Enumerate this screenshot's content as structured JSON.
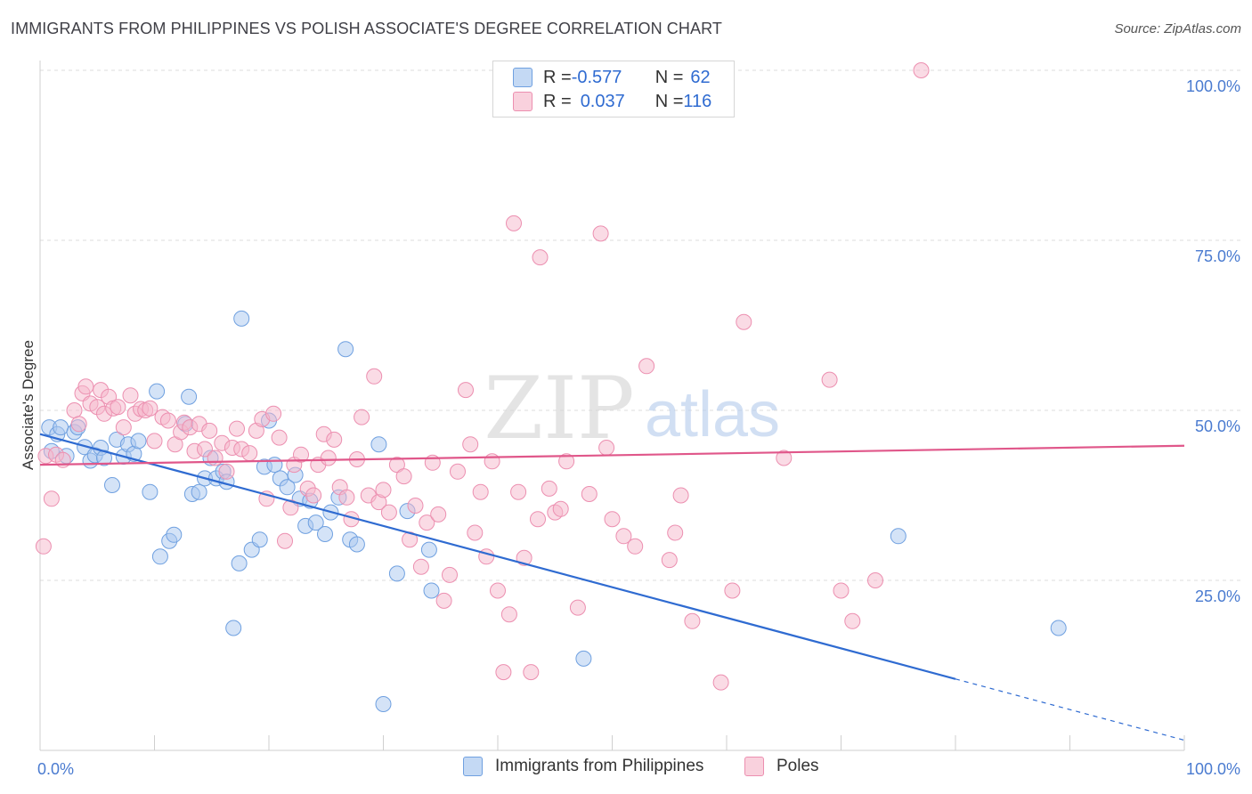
{
  "header": {
    "title": "IMMIGRANTS FROM PHILIPPINES VS POLISH ASSOCIATE'S DEGREE CORRELATION CHART",
    "source": "Source: ZipAtlas.com"
  },
  "watermark": {
    "zip": "ZIP",
    "atlas": "atlas"
  },
  "legend": {
    "rows": [
      {
        "r_label": "R = ",
        "r_value": "-0.577",
        "n_label": "N = ",
        "n_value": "62",
        "color": "#a9c7ef"
      },
      {
        "r_label": "R = ",
        "r_value": "0.037",
        "n_label": "N = ",
        "n_value": "116",
        "color": "#f5b8cb"
      }
    ]
  },
  "bottom_legend": {
    "items": [
      {
        "label": "Immigrants from Philippines",
        "color": "#a9c7ef"
      },
      {
        "label": "Poles",
        "color": "#f5b8cb"
      }
    ]
  },
  "chart_data": {
    "type": "scatter",
    "title": "IMMIGRANTS FROM PHILIPPINES VS POLISH ASSOCIATE'S DEGREE CORRELATION CHART",
    "xlabel": "",
    "ylabel": "Associate's Degree",
    "xlim": [
      0,
      100
    ],
    "ylim": [
      0,
      100
    ],
    "x_tick_labels": [
      "0.0%",
      "100.0%"
    ],
    "y_ticks": [
      {
        "value": 25,
        "label": "25.0%"
      },
      {
        "value": 50,
        "label": "50.0%"
      },
      {
        "value": 75,
        "label": "75.0%"
      },
      {
        "value": 100,
        "label": "100.0%"
      }
    ],
    "grid": true,
    "legend_position": "top-center",
    "series": [
      {
        "name": "Immigrants from Philippines",
        "color": "#6fa0e0",
        "fill": "#a9c7ef",
        "trend": {
          "x0": 0,
          "y0": 46.5,
          "x1": 80,
          "y1": 10.5,
          "dashed_to_x": 100,
          "dashed_to_y": 1.5,
          "color": "#2f6bd1"
        },
        "points": [
          [
            0.8,
            47.5
          ],
          [
            1.0,
            44.0
          ],
          [
            1.5,
            46.5
          ],
          [
            1.8,
            47.5
          ],
          [
            2.3,
            43.3
          ],
          [
            3.0,
            46.8
          ],
          [
            3.3,
            47.5
          ],
          [
            3.9,
            44.6
          ],
          [
            4.4,
            42.6
          ],
          [
            4.8,
            43.4
          ],
          [
            5.3,
            44.5
          ],
          [
            5.6,
            43.0
          ],
          [
            6.3,
            39.0
          ],
          [
            6.7,
            45.7
          ],
          [
            7.3,
            43.2
          ],
          [
            7.7,
            45.0
          ],
          [
            8.2,
            43.6
          ],
          [
            8.6,
            45.5
          ],
          [
            9.6,
            38.0
          ],
          [
            10.2,
            52.8
          ],
          [
            10.5,
            28.5
          ],
          [
            11.3,
            30.8
          ],
          [
            11.7,
            31.7
          ],
          [
            12.7,
            48.0
          ],
          [
            13.0,
            52.0
          ],
          [
            13.3,
            37.7
          ],
          [
            13.9,
            38.0
          ],
          [
            14.4,
            40.0
          ],
          [
            14.9,
            43.0
          ],
          [
            15.4,
            40.0
          ],
          [
            16.0,
            41.0
          ],
          [
            16.3,
            39.5
          ],
          [
            16.9,
            18.0
          ],
          [
            17.4,
            27.5
          ],
          [
            17.6,
            63.5
          ],
          [
            18.5,
            29.5
          ],
          [
            19.2,
            31.0
          ],
          [
            19.6,
            41.7
          ],
          [
            20.0,
            48.5
          ],
          [
            20.5,
            42.0
          ],
          [
            21.0,
            40.0
          ],
          [
            21.6,
            38.7
          ],
          [
            22.3,
            40.5
          ],
          [
            22.7,
            37.0
          ],
          [
            23.2,
            33.0
          ],
          [
            23.6,
            36.7
          ],
          [
            24.1,
            33.5
          ],
          [
            24.9,
            31.8
          ],
          [
            25.4,
            35.0
          ],
          [
            26.1,
            37.2
          ],
          [
            26.7,
            59.0
          ],
          [
            27.1,
            31.0
          ],
          [
            27.7,
            30.3
          ],
          [
            29.6,
            45.0
          ],
          [
            30.0,
            6.8
          ],
          [
            31.2,
            26.0
          ],
          [
            32.1,
            35.2
          ],
          [
            34.0,
            29.5
          ],
          [
            34.2,
            23.5
          ],
          [
            47.5,
            13.5
          ],
          [
            75.0,
            31.5
          ],
          [
            89.0,
            18.0
          ]
        ]
      },
      {
        "name": "Poles",
        "color": "#ec8fb0",
        "fill": "#f5b8cb",
        "trend": {
          "x0": 0,
          "y0": 42.0,
          "x1": 100,
          "y1": 44.8,
          "color": "#e0578a"
        },
        "points": [
          [
            0.3,
            30.0
          ],
          [
            0.5,
            43.3
          ],
          [
            1.0,
            37.0
          ],
          [
            1.4,
            43.5
          ],
          [
            2.0,
            42.7
          ],
          [
            3.0,
            50.0
          ],
          [
            3.4,
            48.0
          ],
          [
            3.7,
            52.5
          ],
          [
            4.0,
            53.5
          ],
          [
            4.4,
            51.0
          ],
          [
            5.0,
            50.5
          ],
          [
            5.3,
            53.0
          ],
          [
            5.6,
            49.5
          ],
          [
            6.0,
            52.0
          ],
          [
            6.4,
            50.3
          ],
          [
            6.8,
            50.5
          ],
          [
            7.3,
            47.5
          ],
          [
            7.9,
            52.2
          ],
          [
            8.3,
            49.5
          ],
          [
            8.8,
            50.2
          ],
          [
            9.2,
            50.0
          ],
          [
            9.6,
            50.3
          ],
          [
            10.0,
            45.5
          ],
          [
            10.7,
            49.0
          ],
          [
            11.2,
            48.5
          ],
          [
            11.8,
            45.0
          ],
          [
            12.3,
            46.8
          ],
          [
            12.6,
            48.2
          ],
          [
            13.1,
            47.5
          ],
          [
            13.5,
            44.0
          ],
          [
            13.9,
            48.0
          ],
          [
            14.4,
            44.3
          ],
          [
            14.8,
            47.0
          ],
          [
            15.3,
            43.0
          ],
          [
            15.9,
            45.2
          ],
          [
            16.3,
            41.0
          ],
          [
            16.8,
            44.5
          ],
          [
            17.2,
            47.3
          ],
          [
            17.6,
            44.3
          ],
          [
            18.3,
            43.7
          ],
          [
            18.9,
            47.0
          ],
          [
            19.4,
            48.7
          ],
          [
            19.8,
            37.0
          ],
          [
            20.4,
            49.5
          ],
          [
            20.9,
            46.0
          ],
          [
            21.4,
            30.8
          ],
          [
            21.9,
            35.7
          ],
          [
            22.2,
            42.0
          ],
          [
            22.8,
            43.5
          ],
          [
            23.4,
            38.5
          ],
          [
            23.9,
            37.5
          ],
          [
            24.3,
            42.0
          ],
          [
            24.8,
            46.5
          ],
          [
            25.2,
            43.0
          ],
          [
            25.7,
            45.7
          ],
          [
            26.2,
            38.7
          ],
          [
            26.8,
            37.2
          ],
          [
            27.2,
            34.0
          ],
          [
            27.7,
            42.8
          ],
          [
            28.1,
            49.0
          ],
          [
            28.7,
            37.5
          ],
          [
            29.2,
            55.0
          ],
          [
            29.6,
            36.5
          ],
          [
            30.0,
            38.3
          ],
          [
            30.5,
            35.0
          ],
          [
            31.2,
            42.0
          ],
          [
            31.8,
            40.3
          ],
          [
            32.3,
            31.0
          ],
          [
            32.8,
            36.0
          ],
          [
            33.3,
            27.0
          ],
          [
            33.8,
            33.5
          ],
          [
            34.3,
            42.3
          ],
          [
            34.8,
            34.7
          ],
          [
            35.3,
            22.0
          ],
          [
            35.8,
            25.8
          ],
          [
            36.5,
            41.0
          ],
          [
            37.2,
            53.0
          ],
          [
            37.6,
            45.0
          ],
          [
            38.0,
            32.0
          ],
          [
            38.5,
            38.0
          ],
          [
            39.0,
            28.5
          ],
          [
            39.5,
            42.5
          ],
          [
            40.0,
            23.5
          ],
          [
            40.5,
            11.5
          ],
          [
            41.0,
            20.0
          ],
          [
            41.4,
            77.5
          ],
          [
            41.8,
            38.0
          ],
          [
            42.3,
            28.3
          ],
          [
            42.9,
            11.5
          ],
          [
            43.5,
            34.0
          ],
          [
            43.7,
            72.5
          ],
          [
            44.5,
            38.5
          ],
          [
            45.0,
            35.0
          ],
          [
            45.5,
            35.5
          ],
          [
            46.0,
            42.5
          ],
          [
            47.0,
            21.0
          ],
          [
            48.0,
            37.7
          ],
          [
            49.0,
            76.0
          ],
          [
            49.5,
            44.5
          ],
          [
            50.0,
            34.0
          ],
          [
            51.0,
            31.5
          ],
          [
            52.0,
            30.0
          ],
          [
            53.0,
            56.5
          ],
          [
            55.0,
            28.0
          ],
          [
            55.5,
            32.0
          ],
          [
            56.0,
            37.5
          ],
          [
            57.0,
            19.0
          ],
          [
            59.5,
            10.0
          ],
          [
            60.5,
            23.5
          ],
          [
            61.5,
            63.0
          ],
          [
            65.0,
            43.0
          ],
          [
            69.0,
            54.5
          ],
          [
            70.0,
            23.5
          ],
          [
            71.0,
            19.0
          ],
          [
            73.0,
            25.0
          ],
          [
            77.0,
            100.0
          ]
        ]
      }
    ]
  }
}
